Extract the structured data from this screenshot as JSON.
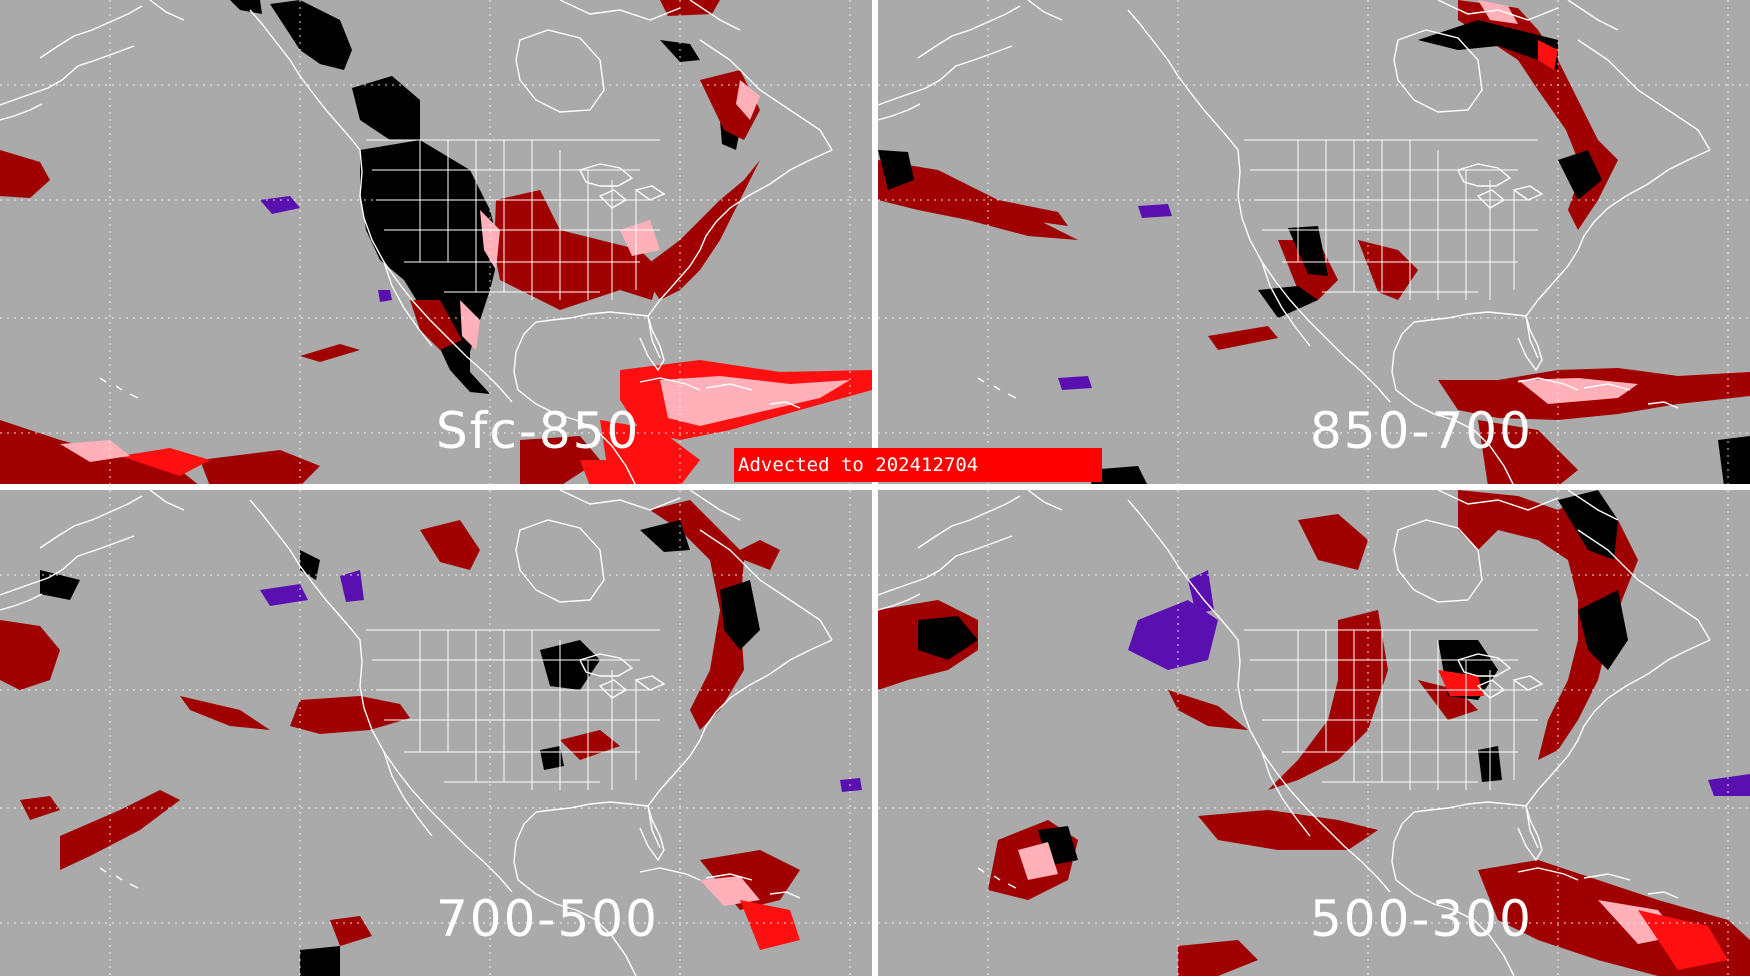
{
  "banner": {
    "text": "Advected to 202412704"
  },
  "panels": [
    {
      "id": "p1",
      "label": "Sfc-850"
    },
    {
      "id": "p2",
      "label": "850-700"
    },
    {
      "id": "p3",
      "label": "700-500"
    },
    {
      "id": "p4",
      "label": "500-300"
    }
  ],
  "colors": {
    "background": "#aaaaaa",
    "coastline": "#ffffff",
    "divider": "#ffffff",
    "dark_red": "#a00000",
    "red": "#ff1010",
    "pink": "#ffb0b8",
    "black": "#000000",
    "purple": "#5a10b0",
    "banner": "#ff0000"
  }
}
